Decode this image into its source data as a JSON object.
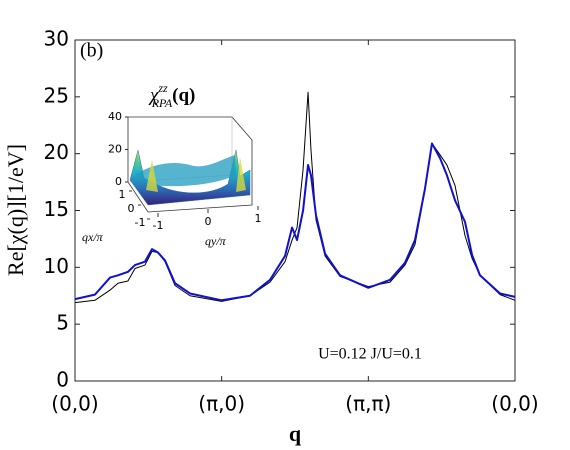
{
  "chart_data": {
    "type": "line",
    "panel_label": "(b)",
    "annotation": "U=0.12 J/U=0.1",
    "ylabel": "Re[χ(q)][1/eV]",
    "xlabel": "q",
    "xlim": [
      0,
      3
    ],
    "xticks": [
      {
        "value": 0,
        "label": "(0,0)"
      },
      {
        "value": 1,
        "label": "(π,0)"
      },
      {
        "value": 2,
        "label": "(π,π)"
      },
      {
        "value": 3,
        "label": "(0,0)"
      }
    ],
    "ylim": [
      0,
      30
    ],
    "yticks": [
      0,
      5,
      10,
      15,
      20,
      25,
      30
    ],
    "x": [
      0,
      0.136,
      0.239,
      0.293,
      0.361,
      0.409,
      0.477,
      0.525,
      0.566,
      0.614,
      0.682,
      0.784,
      1.0,
      1.193,
      1.33,
      1.432,
      1.48,
      1.514,
      1.555,
      1.589,
      1.609,
      1.643,
      1.705,
      1.807,
      2.0,
      2.148,
      2.25,
      2.318,
      2.386,
      2.434,
      2.489,
      2.536,
      2.591,
      2.659,
      2.707,
      2.761,
      2.898,
      3.0
    ],
    "series": [
      {
        "name": "black",
        "color": "#000000",
        "width": 1,
        "values": [
          6.9,
          7.1,
          8.0,
          8.6,
          8.8,
          9.9,
          10.2,
          11.4,
          11.3,
          10.5,
          8.4,
          7.5,
          7.0,
          7.5,
          8.7,
          10.5,
          12.4,
          13.5,
          18.6,
          25.4,
          20.3,
          14.2,
          11.0,
          9.2,
          8.3,
          8.7,
          10.2,
          12.0,
          16.8,
          20.9,
          19.9,
          19.0,
          17.2,
          12.8,
          10.8,
          9.3,
          7.6,
          7.1
        ]
      },
      {
        "name": "blue",
        "color": "#1010d0",
        "width": 2,
        "values": [
          7.2,
          7.6,
          9.1,
          9.3,
          9.6,
          10.2,
          10.5,
          11.6,
          11.3,
          10.6,
          8.6,
          7.7,
          7.1,
          7.5,
          8.9,
          11.0,
          13.5,
          12.4,
          15.0,
          19.0,
          18.1,
          14.6,
          11.2,
          9.3,
          8.2,
          8.9,
          10.4,
          12.4,
          16.9,
          20.9,
          19.6,
          18.1,
          15.9,
          14.0,
          11.1,
          9.3,
          7.7,
          7.4
        ]
      }
    ],
    "inset": {
      "title_symbol": "χ",
      "title_superscript": "zz",
      "title_subscript": "RPA",
      "title_argument": "(q)",
      "zticks": [
        0,
        20,
        40
      ],
      "qx_ticks": [
        1,
        0,
        -1
      ],
      "qy_ticks": [
        -1,
        0,
        1
      ],
      "qx_label": "qx/π",
      "qy_label": "qy/π"
    }
  }
}
